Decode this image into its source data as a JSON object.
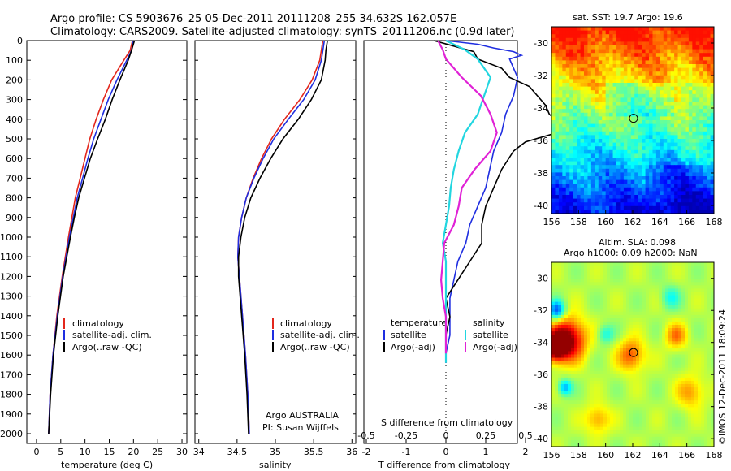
{
  "header": {
    "line1": "Argo profile: CS 5903676_25 05-Dec-2011 20111208_255 34.632S 162.057E",
    "line2": "Climatology: CARS2009. Satellite-adjusted climatology: synTS_20111206.nc (0.9d later)"
  },
  "side_stamp": "©IMOS 12-Dec-2011 18:09:24",
  "colors": {
    "climatology": "#e3261b",
    "satellite": "#1f2ee0",
    "argo": "#000000",
    "salinity_satellite": "#22d6e0",
    "salinity_argo": "#e022d6"
  },
  "legend": {
    "climatology": "climatology",
    "satellite": "satellite-adj. clim.",
    "argo": "Argo(..raw -QC)",
    "diff_temp_header": "temperature",
    "diff_sal_header": "salinity",
    "diff_satellite": "satellite",
    "diff_argo": "Argo(-adj)"
  },
  "chart_data": [
    {
      "type": "line",
      "xlabel": "temperature (deg C)",
      "xticks": [
        0,
        5,
        10,
        15,
        20,
        25,
        30
      ],
      "xlim": [
        -2,
        31
      ],
      "ylim": [
        2050,
        0
      ],
      "yticks": [
        0,
        100,
        200,
        300,
        400,
        500,
        600,
        700,
        800,
        900,
        1000,
        1100,
        1200,
        1300,
        1400,
        1500,
        1600,
        1700,
        1800,
        1900,
        2000
      ],
      "series": [
        {
          "name": "climatology",
          "depth": [
            0,
            50,
            100,
            200,
            300,
            400,
            500,
            600,
            700,
            800,
            900,
            1000,
            1200,
            1400,
            1600,
            1800,
            2000
          ],
          "values": [
            19.8,
            19.3,
            18.0,
            15.5,
            13.8,
            12.3,
            11.0,
            10.0,
            9.0,
            8.0,
            7.3,
            6.6,
            5.3,
            4.2,
            3.4,
            2.8,
            2.5
          ]
        },
        {
          "name": "satellite-adj. clim.",
          "depth": [
            0,
            50,
            100,
            200,
            300,
            400,
            500,
            600,
            700,
            800,
            900,
            1000,
            1200,
            1400,
            1600,
            1800,
            2000
          ],
          "values": [
            20.0,
            19.6,
            18.6,
            16.6,
            14.8,
            13.3,
            11.8,
            10.6,
            9.5,
            8.4,
            7.6,
            6.8,
            5.4,
            4.3,
            3.4,
            2.8,
            2.5
          ]
        },
        {
          "name": "Argo(..raw -QC)",
          "depth": [
            0,
            50,
            100,
            200,
            300,
            400,
            500,
            600,
            700,
            800,
            900,
            1000,
            1200,
            1400,
            1600,
            1800,
            2000
          ],
          "values": [
            20.2,
            19.6,
            18.9,
            17.2,
            15.6,
            14.2,
            12.6,
            11.1,
            9.9,
            8.7,
            7.8,
            7.0,
            5.5,
            4.4,
            3.5,
            2.9,
            2.5
          ]
        }
      ]
    },
    {
      "type": "line",
      "xlabel": "salinity",
      "xticks": [
        34,
        34.5,
        35,
        35.5,
        36
      ],
      "xlim": [
        33.95,
        36.05
      ],
      "ylim": [
        2050,
        0
      ],
      "series": [
        {
          "name": "climatology",
          "depth": [
            0,
            50,
            100,
            200,
            300,
            400,
            500,
            600,
            700,
            800,
            900,
            1000,
            1100,
            1200,
            1400,
            1600,
            1800,
            2000
          ],
          "values": [
            35.62,
            35.6,
            35.58,
            35.48,
            35.32,
            35.12,
            34.95,
            34.82,
            34.71,
            34.62,
            34.56,
            34.52,
            34.51,
            34.53,
            34.57,
            34.61,
            34.64,
            34.66
          ]
        },
        {
          "name": "satellite-adj. clim.",
          "depth": [
            0,
            50,
            100,
            200,
            300,
            400,
            500,
            600,
            700,
            800,
            900,
            1000,
            1100,
            1200,
            1400,
            1600,
            1800,
            2000
          ],
          "values": [
            35.64,
            35.62,
            35.6,
            35.52,
            35.37,
            35.17,
            34.98,
            34.84,
            34.72,
            34.62,
            34.56,
            34.52,
            34.51,
            34.53,
            34.57,
            34.61,
            34.64,
            34.66
          ]
        },
        {
          "name": "Argo(..raw -QC)",
          "depth": [
            0,
            50,
            100,
            200,
            300,
            400,
            500,
            600,
            700,
            800,
            900,
            1000,
            1100,
            1200,
            1400,
            1600,
            1800,
            2000
          ],
          "values": [
            35.68,
            35.66,
            35.65,
            35.6,
            35.47,
            35.3,
            35.1,
            34.94,
            34.8,
            34.68,
            34.6,
            34.55,
            34.52,
            34.52,
            34.56,
            34.6,
            34.63,
            34.65
          ]
        }
      ],
      "annotations": [
        "Argo AUSTRALIA",
        "PI: Susan Wijffels"
      ]
    },
    {
      "type": "line",
      "xlabel_top": "S difference from climatology",
      "xlabel": "T difference from climatology",
      "xticks_top": [
        "-0.5",
        "-0.25",
        "0",
        "0.25",
        "0.5"
      ],
      "xticks": [
        "-2",
        "-1",
        "0",
        "1",
        "2"
      ],
      "xlim": [
        -3,
        3
      ],
      "ylim": [
        1800,
        0
      ],
      "series": [
        {
          "name": "temperature satellite",
          "depth": [
            0,
            20,
            40,
            60,
            80,
            100,
            150,
            200,
            300,
            400,
            500,
            600,
            700,
            800,
            900,
            1000,
            1100,
            1200,
            1300,
            1400,
            1500,
            1600,
            1700,
            1750
          ],
          "values": [
            0.0,
            0.8,
            1.2,
            1.7,
            1.9,
            1.6,
            1.7,
            1.8,
            1.7,
            1.5,
            1.4,
            1.2,
            1.1,
            1.0,
            0.8,
            0.6,
            0.5,
            0.3,
            0.2,
            0.1,
            0.1,
            0.1,
            0.0,
            0.0
          ]
        },
        {
          "name": "temperature Argo(-adj)",
          "depth": [
            0,
            30,
            60,
            100,
            150,
            200,
            250,
            300,
            350,
            400,
            450,
            500,
            550,
            600,
            700,
            800,
            900,
            1000,
            1100,
            1200,
            1300,
            1400,
            1500,
            1600,
            1700,
            1730
          ],
          "values": [
            -0.3,
            0.2,
            0.7,
            0.8,
            1.4,
            1.6,
            2.1,
            2.3,
            2.5,
            2.6,
            2.9,
            2.8,
            2.0,
            1.7,
            1.4,
            1.2,
            1.0,
            0.9,
            0.9,
            0.6,
            0.3,
            0.0,
            0.1,
            0.0,
            0.0,
            0.0
          ]
        },
        {
          "name": "salinity satellite",
          "depth": [
            0,
            50,
            100,
            200,
            300,
            400,
            500,
            600,
            700,
            800,
            900,
            1000,
            1100,
            1200,
            1300,
            1400,
            1600,
            1750
          ],
          "values": [
            0.0,
            0.12,
            0.2,
            0.28,
            0.24,
            0.2,
            0.12,
            0.08,
            0.05,
            0.03,
            0.02,
            0.0,
            -0.02,
            0.0,
            0.0,
            0.0,
            0.0,
            0.0
          ]
        },
        {
          "name": "salinity Argo(-adj)",
          "depth": [
            0,
            50,
            100,
            200,
            300,
            400,
            500,
            600,
            700,
            800,
            900,
            1000,
            1100,
            1200,
            1300,
            1400,
            1500,
            1600,
            1700
          ],
          "values": [
            -0.05,
            -0.02,
            0.0,
            0.1,
            0.22,
            0.28,
            0.32,
            0.28,
            0.18,
            0.1,
            0.08,
            0.05,
            -0.01,
            -0.02,
            -0.03,
            -0.02,
            0.0,
            0.0,
            0.0
          ]
        }
      ]
    },
    {
      "type": "heatmap",
      "title": "sat. SST: 19.7  Argo: 19.6",
      "xticks": [
        "156",
        "158",
        "160",
        "162",
        "164",
        "166",
        "168"
      ],
      "yticks": [
        "-30",
        "-32",
        "-34",
        "-36",
        "-38",
        "-40"
      ],
      "xlim": [
        156,
        168
      ],
      "ylim": [
        -40.5,
        -29
      ],
      "marker": {
        "lon": 162.057,
        "lat": -34.632
      }
    },
    {
      "type": "heatmap",
      "title_line1": "Altim. SLA: 0.098",
      "title_line2": "Argo h1000: 0.09  h2000: NaN",
      "xticks": [
        "156",
        "158",
        "160",
        "162",
        "164",
        "166",
        "168"
      ],
      "yticks": [
        "-30",
        "-32",
        "-34",
        "-36",
        "-38",
        "-40"
      ],
      "xlim": [
        156,
        168
      ],
      "ylim": [
        -40.5,
        -29
      ],
      "marker": {
        "lon": 162.057,
        "lat": -34.632
      }
    }
  ]
}
